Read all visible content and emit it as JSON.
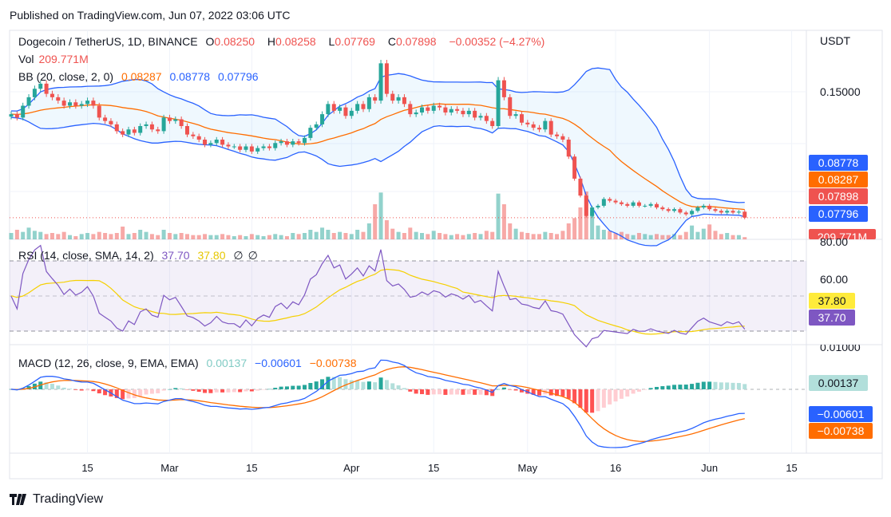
{
  "published": "Published on TradingView.com, Jun 07, 2022 03:06 UTC",
  "brand": "TradingView",
  "colors": {
    "up": "#26a69a",
    "down": "#ef5350",
    "bb_basis": "#ff6d00",
    "bb_band": "#2962ff",
    "rsi": "#7e57c2",
    "rsi_ma": "#f5d000",
    "macd": "#2962ff",
    "signal": "#ff6d00"
  },
  "legend": {
    "symbol": "Dogecoin / TetherUS, 1D, BINANCE",
    "o_label": "O",
    "o": "0.08250",
    "h_label": "H",
    "h": "0.08258",
    "l_label": "L",
    "l": "0.07769",
    "c_label": "C",
    "c": "0.07898",
    "change": "−0.00352 (−4.27%)",
    "vol_label": "Vol",
    "vol": "209.771M",
    "bb_label": "BB (20, close, 2, 0)",
    "bb_basis": "0.08287",
    "bb_upper": "0.08778",
    "bb_lower": "0.07796",
    "rsi_label": "RSI (14, close, SMA, 14, 2)",
    "rsi": "37.70",
    "rsi_ma": "37.80",
    "rsi_extra1": "∅",
    "rsi_extra2": "∅",
    "macd_label": "MACD (12, 26, close, 9, EMA, EMA)",
    "macd_hist": "0.00137",
    "macd": "−0.00601",
    "macd_signal": "−0.00738"
  },
  "price_scale": {
    "currency": "USDT",
    "label": "0.15000",
    "tags": {
      "bb_upper": "0.08778",
      "bb_basis": "0.08287",
      "last": "0.07898",
      "bb_lower": "0.07796",
      "vol": "209.771M"
    }
  },
  "rsi_scale": {
    "l80": "80.00",
    "l60": "60.00",
    "ma_tag": "37.80",
    "rsi_tag": "37.70"
  },
  "macd_scale": {
    "l1": "0.01000",
    "hist_tag": "0.00137",
    "macd_tag": "−0.00601",
    "signal_tag": "−0.00738"
  },
  "chart_data": {
    "type": "candlestick",
    "start_date": "2022-02-02",
    "end_date": "2022-06-07",
    "close": [
      0.14,
      0.138,
      0.145,
      0.15,
      0.155,
      0.158,
      0.152,
      0.15,
      0.148,
      0.145,
      0.147,
      0.145,
      0.146,
      0.148,
      0.145,
      0.138,
      0.136,
      0.134,
      0.13,
      0.128,
      0.131,
      0.129,
      0.133,
      0.134,
      0.131,
      0.13,
      0.138,
      0.136,
      0.137,
      0.133,
      0.128,
      0.127,
      0.125,
      0.122,
      0.123,
      0.125,
      0.122,
      0.121,
      0.121,
      0.119,
      0.121,
      0.118,
      0.12,
      0.121,
      0.12,
      0.123,
      0.124,
      0.122,
      0.124,
      0.123,
      0.126,
      0.132,
      0.134,
      0.14,
      0.146,
      0.142,
      0.144,
      0.139,
      0.142,
      0.146,
      0.143,
      0.15,
      0.148,
      0.17,
      0.152,
      0.148,
      0.15,
      0.146,
      0.14,
      0.141,
      0.144,
      0.142,
      0.145,
      0.144,
      0.141,
      0.143,
      0.142,
      0.14,
      0.142,
      0.138,
      0.139,
      0.136,
      0.133,
      0.16,
      0.15,
      0.139,
      0.14,
      0.135,
      0.134,
      0.132,
      0.131,
      0.136,
      0.128,
      0.127,
      0.125,
      0.115,
      0.102,
      0.092,
      0.08,
      0.085,
      0.086,
      0.09,
      0.089,
      0.088,
      0.087,
      0.086,
      0.088,
      0.086,
      0.086,
      0.087,
      0.085,
      0.084,
      0.083,
      0.084,
      0.082,
      0.081,
      0.083,
      0.085,
      0.086,
      0.084,
      0.083,
      0.082,
      0.083,
      0.082,
      0.0825,
      0.07898
    ],
    "volume_m": [
      600,
      900,
      700,
      1100,
      800,
      700,
      500,
      600,
      500,
      700,
      400,
      300,
      500,
      600,
      500,
      700,
      600,
      500,
      600,
      1200,
      500,
      600,
      900,
      700,
      500,
      400,
      900,
      600,
      500,
      600,
      500,
      400,
      400,
      500,
      400,
      400,
      500,
      400,
      300,
      400,
      300,
      500,
      400,
      300,
      400,
      500,
      400,
      300,
      600,
      500,
      600,
      900,
      700,
      1100,
      900,
      600,
      700,
      600,
      500,
      900,
      700,
      1500,
      3300,
      4400,
      1800,
      1000,
      700,
      600,
      1100,
      700,
      600,
      500,
      800,
      600,
      500,
      400,
      500,
      400,
      500,
      600,
      500,
      800,
      700,
      4300,
      3300,
      1500,
      1000,
      700,
      600,
      500,
      500,
      700,
      600,
      500,
      800,
      1500,
      2000,
      3000,
      4500,
      2600,
      1300,
      900,
      800,
      600,
      700,
      500,
      400,
      600,
      500,
      400,
      500,
      400,
      400,
      500,
      400,
      700,
      1300,
      700,
      1000,
      1400,
      800,
      500,
      600,
      400,
      400,
      210
    ],
    "x_ticks": [
      {
        "label": "15",
        "date": "2022-02-15"
      },
      {
        "label": "Mar",
        "date": "2022-03-01"
      },
      {
        "label": "15",
        "date": "2022-03-15"
      },
      {
        "label": "Apr",
        "date": "2022-04-01"
      },
      {
        "label": "15",
        "date": "2022-04-15"
      },
      {
        "label": "May",
        "date": "2022-05-01"
      },
      {
        "label": "16",
        "date": "2022-05-16"
      },
      {
        "label": "Jun",
        "date": "2022-06-01"
      },
      {
        "label": "15",
        "date": "2022-06-15"
      }
    ],
    "price_axis": {
      "range": [
        0.0662,
        0.1744
      ]
    },
    "rsi_axis": {
      "range": [
        20,
        82
      ],
      "bands": [
        70,
        50,
        30
      ]
    },
    "grid": true
  }
}
